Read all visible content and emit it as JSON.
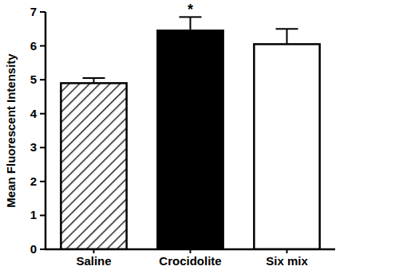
{
  "chart_data": {
    "type": "bar",
    "y_label": "Mean Fluorescent Intensity",
    "categories": [
      "Saline",
      "Crocidolite",
      "Six mix"
    ],
    "values": [
      4.9,
      6.45,
      6.05
    ],
    "errors": [
      0.15,
      0.4,
      0.45
    ],
    "colors": [
      "#ffffff",
      "#000000",
      "#ffffff"
    ],
    "ylim": [
      0,
      7
    ],
    "yticks": [
      0,
      1,
      2,
      3,
      4,
      5,
      6,
      7
    ],
    "grid": false,
    "annotations": [
      {
        "text": "*",
        "category": "Crocidolite"
      }
    ]
  }
}
